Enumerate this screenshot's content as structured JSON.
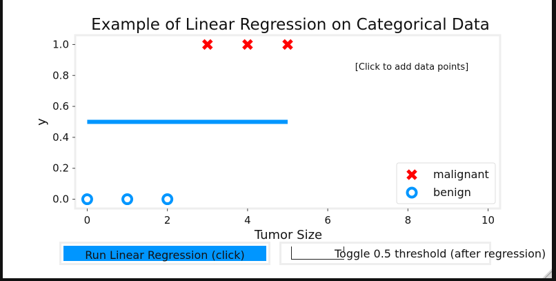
{
  "chart_data": {
    "type": "scatter",
    "title": "Example of Linear Regression on Categorical Data",
    "xlabel": "Tumor Size",
    "ylabel": "y",
    "xlim": [
      -0.3,
      10.3
    ],
    "ylim": [
      -0.06,
      1.06
    ],
    "xticks": [
      0,
      2,
      4,
      6,
      8,
      10
    ],
    "xtick_labels": [
      "0",
      "2",
      "4",
      "6",
      "8",
      "10"
    ],
    "yticks": [
      0.0,
      0.2,
      0.4,
      0.6,
      0.8,
      1.0
    ],
    "ytick_labels": [
      "0.0",
      "0.2",
      "0.4",
      "0.6",
      "0.8",
      "1.0"
    ],
    "grid": false,
    "legend_position": "lower-right",
    "series": [
      {
        "name": "malignant",
        "marker": "x",
        "color": "#ff0000",
        "x": [
          3,
          4,
          5
        ],
        "y": [
          1,
          1,
          1
        ]
      },
      {
        "name": "benign",
        "marker": "o",
        "color": "#0096ff",
        "x": [
          0,
          1,
          2
        ],
        "y": [
          0,
          0,
          0
        ]
      }
    ],
    "line": {
      "color": "#0096ff",
      "x": [
        0,
        5
      ],
      "y": [
        0.5,
        0.5
      ]
    },
    "annotation": "[Click to add data points]"
  },
  "controls": {
    "run_button_label": "Run Linear Regression (click)",
    "run_button_color": "#0096ff",
    "toggle_label": "Toggle 0.5 threshold (after regression)"
  }
}
